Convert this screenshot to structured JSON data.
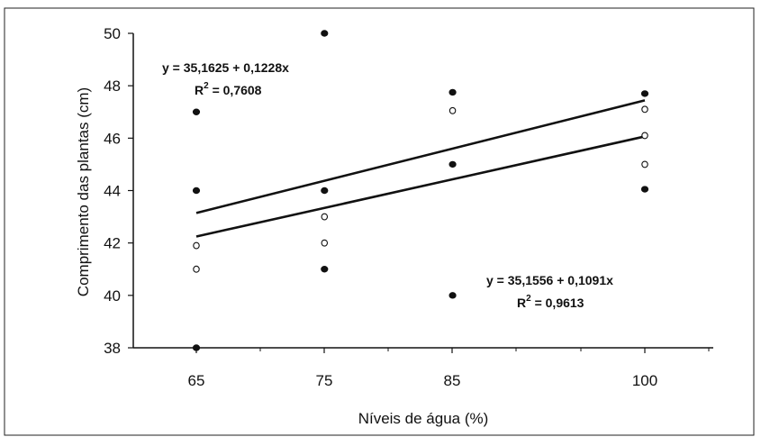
{
  "chart_data": {
    "type": "scatter",
    "xlabel": "Níveis de água (%)",
    "ylabel": "Comprimento das plantas (cm)",
    "categories": [
      "65",
      "75",
      "85",
      "100"
    ],
    "x_values": [
      65,
      75,
      85,
      100
    ],
    "ylim": [
      38,
      50
    ],
    "y_ticks": [
      "38",
      "40",
      "42",
      "44",
      "46",
      "48",
      "50"
    ],
    "grid": false,
    "series": [
      {
        "marker": "filled",
        "points": [
          {
            "x": 65,
            "y": 47
          },
          {
            "x": 65,
            "y": 44
          },
          {
            "x": 65,
            "y": 38
          },
          {
            "x": 75,
            "y": 50
          },
          {
            "x": 75,
            "y": 44
          },
          {
            "x": 75,
            "y": 41
          },
          {
            "x": 85,
            "y": 47.75
          },
          {
            "x": 85,
            "y": 45
          },
          {
            "x": 85,
            "y": 40
          },
          {
            "x": 100,
            "y": 47.7
          },
          {
            "x": 100,
            "y": 44.05
          }
        ],
        "trend": {
          "intercept": 35.1625,
          "slope": 0.1228
        }
      },
      {
        "marker": "open",
        "points": [
          {
            "x": 65,
            "y": 41.9
          },
          {
            "x": 65,
            "y": 41
          },
          {
            "x": 75,
            "y": 43
          },
          {
            "x": 75,
            "y": 42
          },
          {
            "x": 85,
            "y": 47.05
          },
          {
            "x": 100,
            "y": 47.1
          },
          {
            "x": 100,
            "y": 46.1
          },
          {
            "x": 100,
            "y": 45
          }
        ],
        "trend": {
          "intercept": 35.1556,
          "slope": 0.1091
        }
      }
    ],
    "annotations": [
      {
        "id": "eq1",
        "equation": "y = 35,1625 + 0,1228x",
        "r2_prefix": "R",
        "r2_sup": "2",
        "r2_value": " = 0,7608"
      },
      {
        "id": "eq2",
        "equation": "y = 35,1556 + 0,1091x",
        "r2_prefix": "R",
        "r2_sup": "2",
        "r2_value": " = 0,9613"
      }
    ]
  }
}
